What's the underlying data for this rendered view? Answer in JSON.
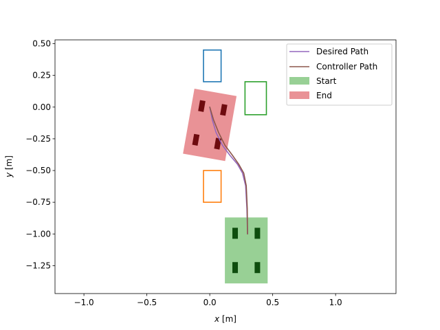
{
  "chart_data": {
    "type": "line",
    "title": "",
    "xlabel": {
      "var": "x",
      "unit": " [m]"
    },
    "ylabel": {
      "var": "y",
      "unit": " [m]"
    },
    "xlim": [
      -1.23,
      1.48
    ],
    "ylim": [
      -1.47,
      0.53
    ],
    "xticks": [
      -1.0,
      -0.5,
      0.0,
      0.5,
      1.0
    ],
    "xtick_labels": [
      "−1.0",
      "−0.5",
      "0.0",
      "0.5",
      "1.0"
    ],
    "yticks": [
      0.5,
      0.25,
      0.0,
      -0.25,
      -0.5,
      -0.75,
      -1.0,
      -1.25
    ],
    "ytick_labels": [
      "0.50",
      "0.25",
      "0.00",
      "−0.25",
      "−0.50",
      "−0.75",
      "−1.00",
      "−1.25"
    ],
    "grid": false,
    "legend_position": "top-right",
    "series": [
      {
        "name": "Desired Path",
        "color": "#9467bd",
        "x": [
          0.0,
          0.02,
          0.05,
          0.1,
          0.16,
          0.22,
          0.26,
          0.285,
          0.295,
          0.3
        ],
        "y": [
          0.0,
          -0.1,
          -0.2,
          -0.3,
          -0.38,
          -0.45,
          -0.52,
          -0.62,
          -0.8,
          -1.0
        ]
      },
      {
        "name": "Controller Path",
        "color": "#8c564b",
        "x": [
          0.0,
          0.03,
          0.07,
          0.12,
          0.18,
          0.23,
          0.27,
          0.29,
          0.298,
          0.3
        ],
        "y": [
          0.0,
          -0.1,
          -0.2,
          -0.3,
          -0.38,
          -0.45,
          -0.52,
          -0.62,
          -0.8,
          -1.0
        ]
      }
    ],
    "obstacles": [
      {
        "color": "#1f77b4",
        "x0": -0.05,
        "x1": 0.09,
        "y0": 0.2,
        "y1": 0.45
      },
      {
        "color": "#2ca02c",
        "x0": 0.28,
        "x1": 0.45,
        "y0": -0.06,
        "y1": 0.2
      },
      {
        "color": "#ff7f0e",
        "x0": -0.05,
        "x1": 0.09,
        "y0": -0.75,
        "y1": -0.5
      }
    ],
    "start_pose": {
      "name": "Start",
      "color": "#98d095",
      "wheel_color": "#0e4d0e",
      "cx": 0.29,
      "cy": -1.13,
      "width": 0.34,
      "height": 0.52,
      "angle_deg": 0
    },
    "end_pose": {
      "name": "End",
      "color": "#e99296",
      "wheel_color": "#6e0b0f",
      "cx": 0.0,
      "cy": -0.14,
      "width": 0.34,
      "height": 0.52,
      "angle_deg": 10
    }
  }
}
